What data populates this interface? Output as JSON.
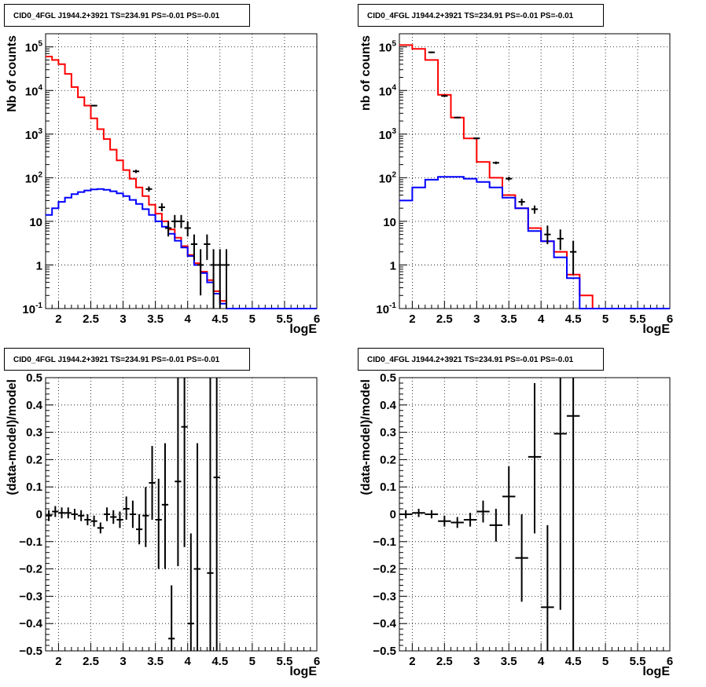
{
  "chart_data": [
    {
      "type": "histogram",
      "panel": "top-left",
      "title": "CID0_4FGL J1944.2+3921 TS=234.91 PS=-0.01 PS=-0.01",
      "xlabel": "logE",
      "ylabel": "Nb of counts",
      "xlim": [
        1.8,
        6.0
      ],
      "ylim": [
        0.1,
        200000
      ],
      "yscale": "log",
      "grid": true,
      "xticks": [
        "2",
        "2.5",
        "3",
        "3.5",
        "4",
        "4.5",
        "5",
        "5.5",
        "6"
      ],
      "yticks": [
        {
          "base": "10",
          "exp": "-1"
        },
        {
          "base": "1",
          "exp": ""
        },
        {
          "base": "10",
          "exp": ""
        },
        {
          "base": "10",
          "exp": "2"
        },
        {
          "base": "10",
          "exp": "3"
        },
        {
          "base": "10",
          "exp": "4"
        },
        {
          "base": "10",
          "exp": "5"
        }
      ],
      "bins": [
        1.8,
        1.9,
        2.0,
        2.1,
        2.2,
        2.3,
        2.4,
        2.5,
        2.6,
        2.7,
        2.8,
        2.9,
        3.0,
        3.1,
        3.2,
        3.3,
        3.4,
        3.5,
        3.6,
        3.7,
        3.8,
        3.9,
        4.0,
        4.1,
        4.2,
        4.3,
        4.4,
        4.5,
        4.6,
        4.7,
        4.8,
        4.9,
        5.0,
        5.1,
        5.2,
        5.3,
        5.4,
        5.5,
        5.6,
        5.7,
        5.8,
        5.9,
        6.0
      ],
      "series": [
        {
          "color": "#ff0000",
          "values": [
            60000,
            50000,
            40000,
            24000,
            12000,
            7000,
            4500,
            2300,
            1300,
            770,
            440,
            250,
            150,
            95,
            60,
            38,
            24,
            15,
            10,
            6.5,
            4.2,
            2.7,
            1.7,
            1.1,
            0.7,
            0.45,
            0.25,
            0.15,
            0.1,
            0.1,
            0.1,
            0.1,
            0.1,
            0.1,
            0.1,
            0.1,
            0.1,
            0.1,
            0.1,
            0.1,
            0.1,
            0.1
          ]
        },
        {
          "color": "#0000ff",
          "values": [
            14,
            20,
            28,
            35,
            42,
            47,
            51,
            54,
            55,
            53,
            49,
            44,
            38,
            31,
            25,
            19,
            14,
            10,
            7.5,
            5.2,
            3.6,
            2.5,
            1.6,
            1.0,
            0.65,
            0.4,
            0.22,
            0.13,
            0.1,
            0.1,
            0.1,
            0.1,
            0.1,
            0.1,
            0.1,
            0.1,
            0.1,
            0.1,
            0.1,
            0.1,
            0.1,
            0.1
          ]
        }
      ],
      "points": [
        {
          "x": 2.55,
          "y": 4500,
          "lo": 4300,
          "hi": 4700
        },
        {
          "x": 3.2,
          "y": 140,
          "lo": 128,
          "hi": 152
        },
        {
          "x": 3.4,
          "y": 55,
          "lo": 48,
          "hi": 63
        },
        {
          "x": 3.6,
          "y": 21,
          "lo": 17,
          "hi": 26
        },
        {
          "x": 3.7,
          "y": 7,
          "lo": 4.5,
          "hi": 10
        },
        {
          "x": 3.8,
          "y": 10,
          "lo": 7,
          "hi": 14
        },
        {
          "x": 3.9,
          "y": 10,
          "lo": 7,
          "hi": 14
        },
        {
          "x": 4.0,
          "y": 7,
          "lo": 4.5,
          "hi": 10
        },
        {
          "x": 4.1,
          "y": 3,
          "lo": 1.3,
          "hi": 5
        },
        {
          "x": 4.2,
          "y": 1,
          "lo": 0.2,
          "hi": 2.3
        },
        {
          "x": 4.3,
          "y": 3,
          "lo": 1.3,
          "hi": 5
        },
        {
          "x": 4.4,
          "y": 1,
          "lo": 0.1,
          "hi": 2.3
        },
        {
          "x": 4.5,
          "y": 1,
          "lo": 0.1,
          "hi": 2.3
        },
        {
          "x": 4.6,
          "y": 1,
          "lo": 0.1,
          "hi": 2.3
        }
      ]
    },
    {
      "type": "histogram",
      "panel": "top-right",
      "title": "CID0_4FGL J1944.2+3921 TS=234.91 PS=-0.01 PS=-0.01",
      "xlabel": "logE",
      "ylabel": "nb of counts",
      "xlim": [
        1.8,
        6.0
      ],
      "ylim": [
        0.1,
        200000
      ],
      "yscale": "log",
      "grid": true,
      "xticks": [
        "2",
        "2.5",
        "3",
        "3.5",
        "4",
        "4.5",
        "5",
        "5.5",
        "6"
      ],
      "yticks": [
        {
          "base": "10",
          "exp": "-1"
        },
        {
          "base": "1",
          "exp": ""
        },
        {
          "base": "10",
          "exp": ""
        },
        {
          "base": "10",
          "exp": "2"
        },
        {
          "base": "10",
          "exp": "3"
        },
        {
          "base": "10",
          "exp": "4"
        },
        {
          "base": "10",
          "exp": "5"
        }
      ],
      "bins": [
        1.8,
        2.0,
        2.2,
        2.4,
        2.6,
        2.8,
        3.0,
        3.2,
        3.4,
        3.6,
        3.8,
        4.0,
        4.2,
        4.4,
        4.6,
        4.8,
        5.0,
        5.2,
        5.4,
        5.6,
        5.8,
        6.0
      ],
      "series": [
        {
          "color": "#ff0000",
          "values": [
            110000,
            90000,
            50000,
            8000,
            2400,
            800,
            230,
            100,
            40,
            20,
            7,
            3.5,
            2,
            0.6,
            0.2,
            0.1,
            0.1,
            0.1,
            0.1,
            0.1,
            0.1
          ]
        },
        {
          "color": "#0000ff",
          "values": [
            30,
            60,
            90,
            105,
            105,
            95,
            80,
            60,
            35,
            20,
            6,
            3.5,
            1.5,
            0.5,
            0.1,
            0.1,
            0.1,
            0.1,
            0.1,
            0.1,
            0.1
          ]
        }
      ],
      "points": [
        {
          "x": 2.3,
          "y": 75000,
          "lo": 72000,
          "hi": 78000
        },
        {
          "x": 2.5,
          "y": 7500,
          "lo": 7200,
          "hi": 7800
        },
        {
          "x": 2.7,
          "y": 2400,
          "lo": 2300,
          "hi": 2500
        },
        {
          "x": 3.0,
          "y": 800,
          "lo": 760,
          "hi": 840
        },
        {
          "x": 3.3,
          "y": 220,
          "lo": 205,
          "hi": 235
        },
        {
          "x": 3.5,
          "y": 95,
          "lo": 86,
          "hi": 105
        },
        {
          "x": 3.7,
          "y": 28,
          "lo": 23,
          "hi": 33
        },
        {
          "x": 3.9,
          "y": 19,
          "lo": 15,
          "hi": 23
        },
        {
          "x": 4.1,
          "y": 5,
          "lo": 3,
          "hi": 8
        },
        {
          "x": 4.3,
          "y": 4,
          "lo": 2.2,
          "hi": 6.5
        },
        {
          "x": 4.5,
          "y": 2,
          "lo": 0.6,
          "hi": 3.6
        }
      ]
    },
    {
      "type": "errorbar",
      "panel": "bottom-left",
      "title": "CID0_4FGL J1944.2+3921 TS=234.91 PS=-0.01 PS=-0.01",
      "xlabel": "logE",
      "ylabel": "(data-model)/model",
      "xlim": [
        1.8,
        6.0
      ],
      "ylim": [
        -0.5,
        0.5
      ],
      "grid": true,
      "xticks": [
        "2",
        "2.5",
        "3",
        "3.5",
        "4",
        "4.5",
        "5",
        "5.5",
        "6"
      ],
      "yticks": [
        "−0.5",
        "−0.4",
        "−0.3",
        "−0.2",
        "−0.1",
        "0",
        "0.1",
        "0.2",
        "0.3",
        "0.4",
        "0.5"
      ],
      "xhalf": 0.05,
      "points": [
        {
          "x": 1.85,
          "y": -0.005,
          "lo": -0.025,
          "hi": 0.015
        },
        {
          "x": 1.95,
          "y": 0.01,
          "lo": -0.01,
          "hi": 0.03
        },
        {
          "x": 2.05,
          "y": 0.005,
          "lo": -0.015,
          "hi": 0.025
        },
        {
          "x": 2.15,
          "y": 0.005,
          "lo": -0.015,
          "hi": 0.025
        },
        {
          "x": 2.25,
          "y": 0.0,
          "lo": -0.02,
          "hi": 0.02
        },
        {
          "x": 2.35,
          "y": -0.005,
          "lo": -0.025,
          "hi": 0.015
        },
        {
          "x": 2.45,
          "y": -0.02,
          "lo": -0.04,
          "hi": 0.0
        },
        {
          "x": 2.55,
          "y": -0.025,
          "lo": -0.045,
          "hi": -0.005
        },
        {
          "x": 2.65,
          "y": -0.05,
          "lo": -0.07,
          "hi": -0.03
        },
        {
          "x": 2.75,
          "y": 0.0,
          "lo": -0.025,
          "hi": 0.025
        },
        {
          "x": 2.85,
          "y": -0.01,
          "lo": -0.035,
          "hi": 0.015
        },
        {
          "x": 2.95,
          "y": -0.02,
          "lo": -0.05,
          "hi": 0.01
        },
        {
          "x": 3.05,
          "y": 0.02,
          "lo": -0.02,
          "hi": 0.065
        },
        {
          "x": 3.15,
          "y": 0.0,
          "lo": -0.05,
          "hi": 0.05
        },
        {
          "x": 3.25,
          "y": -0.055,
          "lo": -0.11,
          "hi": 0.0
        },
        {
          "x": 3.35,
          "y": -0.005,
          "lo": -0.12,
          "hi": 0.1
        },
        {
          "x": 3.45,
          "y": 0.115,
          "lo": -0.02,
          "hi": 0.25
        },
        {
          "x": 3.55,
          "y": -0.02,
          "lo": -0.2,
          "hi": 0.13
        },
        {
          "x": 3.65,
          "y": 0.035,
          "lo": -0.2,
          "hi": 0.26
        },
        {
          "x": 3.75,
          "y": -0.455,
          "lo": -0.5,
          "hi": -0.26
        },
        {
          "x": 3.85,
          "y": 0.12,
          "lo": -0.19,
          "hi": 0.5
        },
        {
          "x": 3.95,
          "y": 0.32,
          "lo": -0.12,
          "hi": 0.5
        },
        {
          "x": 4.05,
          "y": -0.4,
          "lo": -0.5,
          "hi": -0.07
        },
        {
          "x": 4.15,
          "y": -0.2,
          "lo": -0.5,
          "hi": 0.26
        },
        {
          "x": 4.35,
          "y": -0.215,
          "lo": -0.5,
          "hi": 0.5
        },
        {
          "x": 4.45,
          "y": 0.135,
          "lo": -0.5,
          "hi": 0.5
        }
      ]
    },
    {
      "type": "errorbar",
      "panel": "bottom-right",
      "title": "CID0_4FGL J1944.2+3921 TS=234.91 PS=-0.01 PS=-0.01",
      "xlabel": "logE",
      "ylabel": "(data-model)/model",
      "xlim": [
        1.8,
        6.0
      ],
      "ylim": [
        -0.5,
        0.5
      ],
      "grid": true,
      "xticks": [
        "2",
        "2.5",
        "3",
        "3.5",
        "4",
        "4.5",
        "5",
        "5.5",
        "6"
      ],
      "yticks": [
        "−0.5",
        "−0.4",
        "−0.3",
        "−0.2",
        "−0.1",
        "0",
        "0.1",
        "0.2",
        "0.3",
        "0.4",
        "0.5"
      ],
      "xhalf": 0.1,
      "points": [
        {
          "x": 1.9,
          "y": 0.0,
          "lo": -0.015,
          "hi": 0.015
        },
        {
          "x": 2.1,
          "y": 0.005,
          "lo": -0.01,
          "hi": 0.02
        },
        {
          "x": 2.3,
          "y": 0.0,
          "lo": -0.015,
          "hi": 0.015
        },
        {
          "x": 2.5,
          "y": -0.025,
          "lo": -0.045,
          "hi": -0.005
        },
        {
          "x": 2.7,
          "y": -0.03,
          "lo": -0.05,
          "hi": -0.01
        },
        {
          "x": 2.9,
          "y": -0.02,
          "lo": -0.045,
          "hi": 0.005
        },
        {
          "x": 3.1,
          "y": 0.01,
          "lo": -0.03,
          "hi": 0.05
        },
        {
          "x": 3.3,
          "y": -0.04,
          "lo": -0.1,
          "hi": 0.02
        },
        {
          "x": 3.5,
          "y": 0.065,
          "lo": -0.04,
          "hi": 0.175
        },
        {
          "x": 3.7,
          "y": -0.16,
          "lo": -0.32,
          "hi": 0.0
        },
        {
          "x": 3.9,
          "y": 0.21,
          "lo": -0.07,
          "hi": 0.48
        },
        {
          "x": 4.1,
          "y": -0.34,
          "lo": -0.5,
          "hi": -0.04
        },
        {
          "x": 4.3,
          "y": 0.295,
          "lo": -0.35,
          "hi": 0.5
        },
        {
          "x": 4.5,
          "y": 0.36,
          "lo": -0.5,
          "hi": 0.5
        }
      ]
    }
  ]
}
